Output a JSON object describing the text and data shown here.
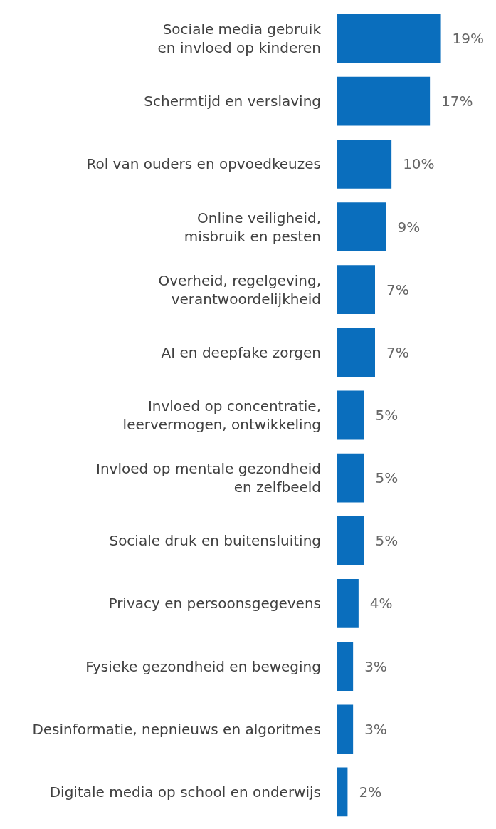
{
  "chart_data": {
    "type": "bar",
    "orientation": "horizontal",
    "categories": [
      "Sociale media gebruik\nen invloed op kinderen",
      "Schermtijd en verslaving",
      "Rol van ouders en opvoedkeuzes",
      "Online veiligheid,\nmisbruik en pesten",
      "Overheid, regelgeving,\nverantwoordelijkheid",
      "AI en deepfake zorgen",
      "Invloed op concentratie,\nleervermogen, ontwikkeling",
      "Invloed op mentale gezondheid\nen zelfbeeld",
      "Sociale druk en buitensluiting",
      "Privacy en persoonsgegevens",
      "Fysieke gezondheid en beweging",
      "Desinformatie, nepnieuws en algoritmes",
      "Digitale media op school en onderwijs"
    ],
    "values": [
      19,
      17,
      10,
      9,
      7,
      7,
      5,
      5,
      5,
      4,
      3,
      3,
      2
    ],
    "value_labels": [
      "19%",
      "17%",
      "10%",
      "9%",
      "7%",
      "7%",
      "5%",
      "5%",
      "5%",
      "4%",
      "3%",
      "3%",
      "2%"
    ],
    "color": "#0a6ebd",
    "grid": false
  }
}
